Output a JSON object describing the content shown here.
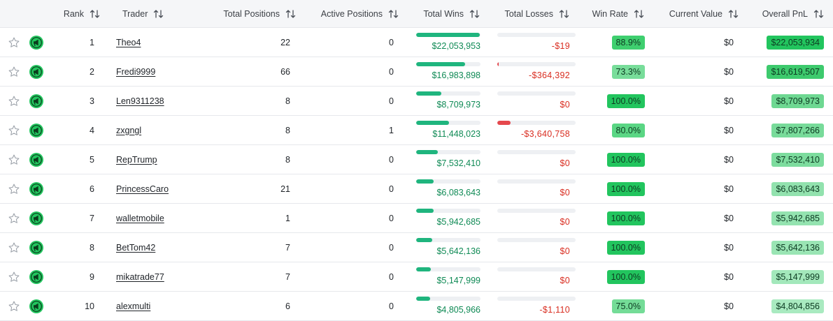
{
  "columns": {
    "rank": "Rank",
    "trader": "Trader",
    "total_positions": "Total Positions",
    "active_positions": "Active Positions",
    "total_wins": "Total Wins",
    "total_losses": "Total Losses",
    "win_rate": "Win Rate",
    "current_value": "Current Value",
    "overall_pnl": "Overall PnL"
  },
  "icons": {
    "star": "star-icon",
    "trader_badge": "megaphone-icon",
    "sort": "sort-arrows-icon"
  },
  "colors": {
    "wins": "#1fb57e",
    "losses": "#e5484d",
    "badge": "#22c55e",
    "pill_strong": "#22c55e",
    "pill_light": "#a7f0c0"
  },
  "rows": [
    {
      "rank": "1",
      "trader": "Theo4",
      "total_positions": "22",
      "active_positions": "0",
      "total_wins": "$22,053,953",
      "wins_fraction": 0.99,
      "total_losses": "-$19",
      "losses_fraction": 0.0,
      "win_rate": "88.9%",
      "current_value": "$0",
      "overall_pnl": "$22,053,934",
      "pnl_color": "#22c55e"
    },
    {
      "rank": "2",
      "trader": "Fredi9999",
      "total_positions": "66",
      "active_positions": "0",
      "total_wins": "$16,983,898",
      "wins_fraction": 0.76,
      "total_losses": "-$364,392",
      "losses_fraction": 0.02,
      "win_rate": "73.3%",
      "current_value": "$0",
      "overall_pnl": "$16,619,507",
      "pnl_color": "#3dca6d"
    },
    {
      "rank": "3",
      "trader": "Len9311238",
      "total_positions": "8",
      "active_positions": "0",
      "total_wins": "$8,709,973",
      "wins_fraction": 0.39,
      "total_losses": "$0",
      "losses_fraction": 0.0,
      "win_rate": "100.0%",
      "current_value": "$0",
      "overall_pnl": "$8,709,973",
      "pnl_color": "#6ed892"
    },
    {
      "rank": "4",
      "trader": "zxgngl",
      "total_positions": "8",
      "active_positions": "1",
      "total_wins": "$11,448,023",
      "wins_fraction": 0.51,
      "total_losses": "-$3,640,758",
      "losses_fraction": 0.17,
      "win_rate": "80.0%",
      "current_value": "$0",
      "overall_pnl": "$7,807,266",
      "pnl_color": "#78db9a"
    },
    {
      "rank": "5",
      "trader": "RepTrump",
      "total_positions": "8",
      "active_positions": "0",
      "total_wins": "$7,532,410",
      "wins_fraction": 0.34,
      "total_losses": "$0",
      "losses_fraction": 0.0,
      "win_rate": "100.0%",
      "current_value": "$0",
      "overall_pnl": "$7,532,410",
      "pnl_color": "#7ddc9e"
    },
    {
      "rank": "6",
      "trader": "PrincessCaro",
      "total_positions": "21",
      "active_positions": "0",
      "total_wins": "$6,083,643",
      "wins_fraction": 0.27,
      "total_losses": "$0",
      "losses_fraction": 0.0,
      "win_rate": "100.0%",
      "current_value": "$0",
      "overall_pnl": "$6,083,643",
      "pnl_color": "#92e2ae"
    },
    {
      "rank": "7",
      "trader": "walletmobile",
      "total_positions": "1",
      "active_positions": "0",
      "total_wins": "$5,942,685",
      "wins_fraction": 0.27,
      "total_losses": "$0",
      "losses_fraction": 0.0,
      "win_rate": "100.0%",
      "current_value": "$0",
      "overall_pnl": "$5,942,685",
      "pnl_color": "#94e3b0"
    },
    {
      "rank": "8",
      "trader": "BetTom42",
      "total_positions": "7",
      "active_positions": "0",
      "total_wins": "$5,642,136",
      "wins_fraction": 0.25,
      "total_losses": "$0",
      "losses_fraction": 0.0,
      "win_rate": "100.0%",
      "current_value": "$0",
      "overall_pnl": "$5,642,136",
      "pnl_color": "#9ae5b4"
    },
    {
      "rank": "9",
      "trader": "mikatrade77",
      "total_positions": "7",
      "active_positions": "0",
      "total_wins": "$5,147,999",
      "wins_fraction": 0.23,
      "total_losses": "$0",
      "losses_fraction": 0.0,
      "win_rate": "100.0%",
      "current_value": "$0",
      "overall_pnl": "$5,147,999",
      "pnl_color": "#a3e8bb"
    },
    {
      "rank": "10",
      "trader": "alexmulti",
      "total_positions": "6",
      "active_positions": "0",
      "total_wins": "$4,805,966",
      "wins_fraction": 0.22,
      "total_losses": "-$1,110",
      "losses_fraction": 0.0,
      "win_rate": "75.0%",
      "current_value": "$0",
      "overall_pnl": "$4,804,856",
      "pnl_color": "#a9eac0"
    }
  ],
  "win_rate_colors": {
    "100.0%": "#22c55e",
    "88.9%": "#3fcf6f",
    "80.0%": "#5ad684",
    "75.0%": "#74dc97",
    "73.3%": "#78dd9a"
  }
}
